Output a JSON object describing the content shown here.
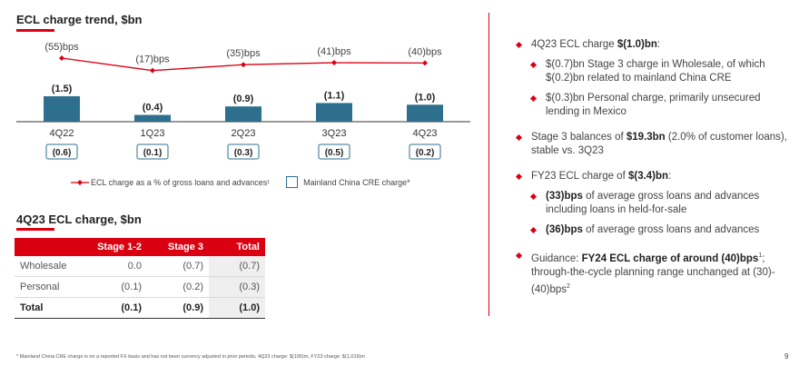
{
  "chart_section": {
    "title": "ECL charge trend, $bn",
    "legend_line": "ECL charge as a % of gross loans and advances",
    "legend_line_sup": "1",
    "legend_box": "Mainland China CRE charge*"
  },
  "chart_data": {
    "type": "bar",
    "categories": [
      "4Q22",
      "1Q23",
      "2Q23",
      "3Q23",
      "4Q23"
    ],
    "series": [
      {
        "name": "ECL charge",
        "values": [
          1.5,
          0.4,
          0.9,
          1.1,
          1.0
        ],
        "labels": [
          "(1.5)",
          "(0.4)",
          "(0.9)",
          "(1.1)",
          "(1.0)"
        ]
      },
      {
        "name": "ECL charge as a % of gross loans and advances",
        "values": [
          55,
          17,
          35,
          41,
          40
        ],
        "labels": [
          "(55)bps",
          "(17)bps",
          "(35)bps",
          "(41)bps",
          "(40)bps"
        ]
      },
      {
        "name": "Mainland China CRE charge*",
        "values": [
          0.6,
          0.1,
          0.3,
          0.5,
          0.2
        ],
        "labels": [
          "(0.6)",
          "(0.1)",
          "(0.3)",
          "(0.5)",
          "(0.2)"
        ]
      }
    ],
    "colors": {
      "bar": "#2e6f8e",
      "line": "#db0011"
    }
  },
  "table_section": {
    "title": "4Q23 ECL charge, $bn",
    "headers": [
      "",
      "Stage 1-2",
      "Stage 3",
      "Total"
    ],
    "rows": [
      [
        "Wholesale",
        "0.0",
        "(0.7)",
        "(0.7)"
      ],
      [
        "Personal",
        "(0.1)",
        "(0.2)",
        "(0.3)"
      ]
    ],
    "total": [
      "Total",
      "(0.1)",
      "(0.9)",
      "(1.0)"
    ]
  },
  "bullets": {
    "b1_pre": "4Q23 ECL charge ",
    "b1_bold": "$(1.0)bn",
    "b1_post": ":",
    "b1_s1": "$(0.7)bn Stage 3 charge in Wholesale, of which $(0.2)bn related to mainland China CRE",
    "b1_s2": "$(0.3)bn Personal charge, primarily unsecured lending in Mexico",
    "b2_pre": "Stage 3 balances of ",
    "b2_bold": "$19.3bn",
    "b2_post": " (2.0% of customer loans), stable vs. 3Q23",
    "b3_pre": "FY23 ECL charge of ",
    "b3_bold": "$(3.4)bn",
    "b3_post": ":",
    "b3_s1_bold": "(33)bps",
    "b3_s1_post": " of average gross loans and advances including loans in held-for-sale",
    "b3_s2_bold": "(36)bps",
    "b3_s2_post": " of average gross loans and advances",
    "b4_pre": "Guidance: ",
    "b4_bold": "FY24 ECL charge of around (40)bps",
    "b4_sup1": "1",
    "b4_post": "; through-the-cycle planning range unchanged at (30)-(40)bps",
    "b4_sup2": "2"
  },
  "footnote": "* Mainland China CRE charge is on a reported FX basis and has not been currency adjusted in prior periods, 4Q23 charge: $(195)m, FY23 charge: $(1,019)m",
  "page_number": "9"
}
